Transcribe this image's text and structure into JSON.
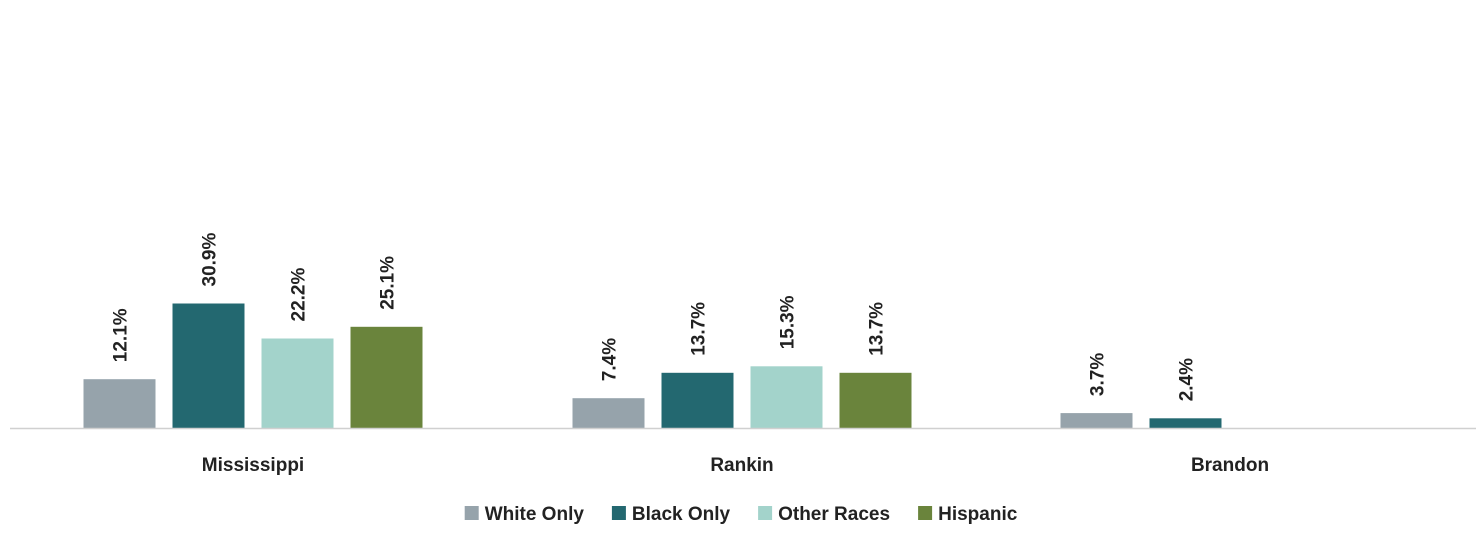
{
  "chart_data": {
    "type": "bar",
    "categories": [
      "Mississippi",
      "Rankin",
      "Brandon"
    ],
    "series": [
      {
        "name": "White Only",
        "color": "#96a3ab",
        "values": [
          12.1,
          7.4,
          3.7
        ],
        "labels": [
          "12.1%",
          "7.4%",
          "3.7%"
        ]
      },
      {
        "name": "Black Only",
        "color": "#236870",
        "values": [
          30.9,
          13.7,
          2.4
        ],
        "labels": [
          "30.9%",
          "13.7%",
          "2.4%"
        ]
      },
      {
        "name": "Other Races",
        "color": "#a3d3cb",
        "values": [
          22.2,
          15.3,
          null
        ],
        "labels": [
          "22.2%",
          "15.3%",
          ""
        ]
      },
      {
        "name": "Hispanic",
        "color": "#6a843c",
        "values": [
          25.1,
          13.7,
          null
        ],
        "labels": [
          "25.1%",
          "13.7%",
          ""
        ]
      }
    ],
    "ylim": [
      0,
      100
    ],
    "grid": false,
    "legend_position": "bottom",
    "data_labels": true,
    "axis_line_color": "#d0d0d0"
  }
}
